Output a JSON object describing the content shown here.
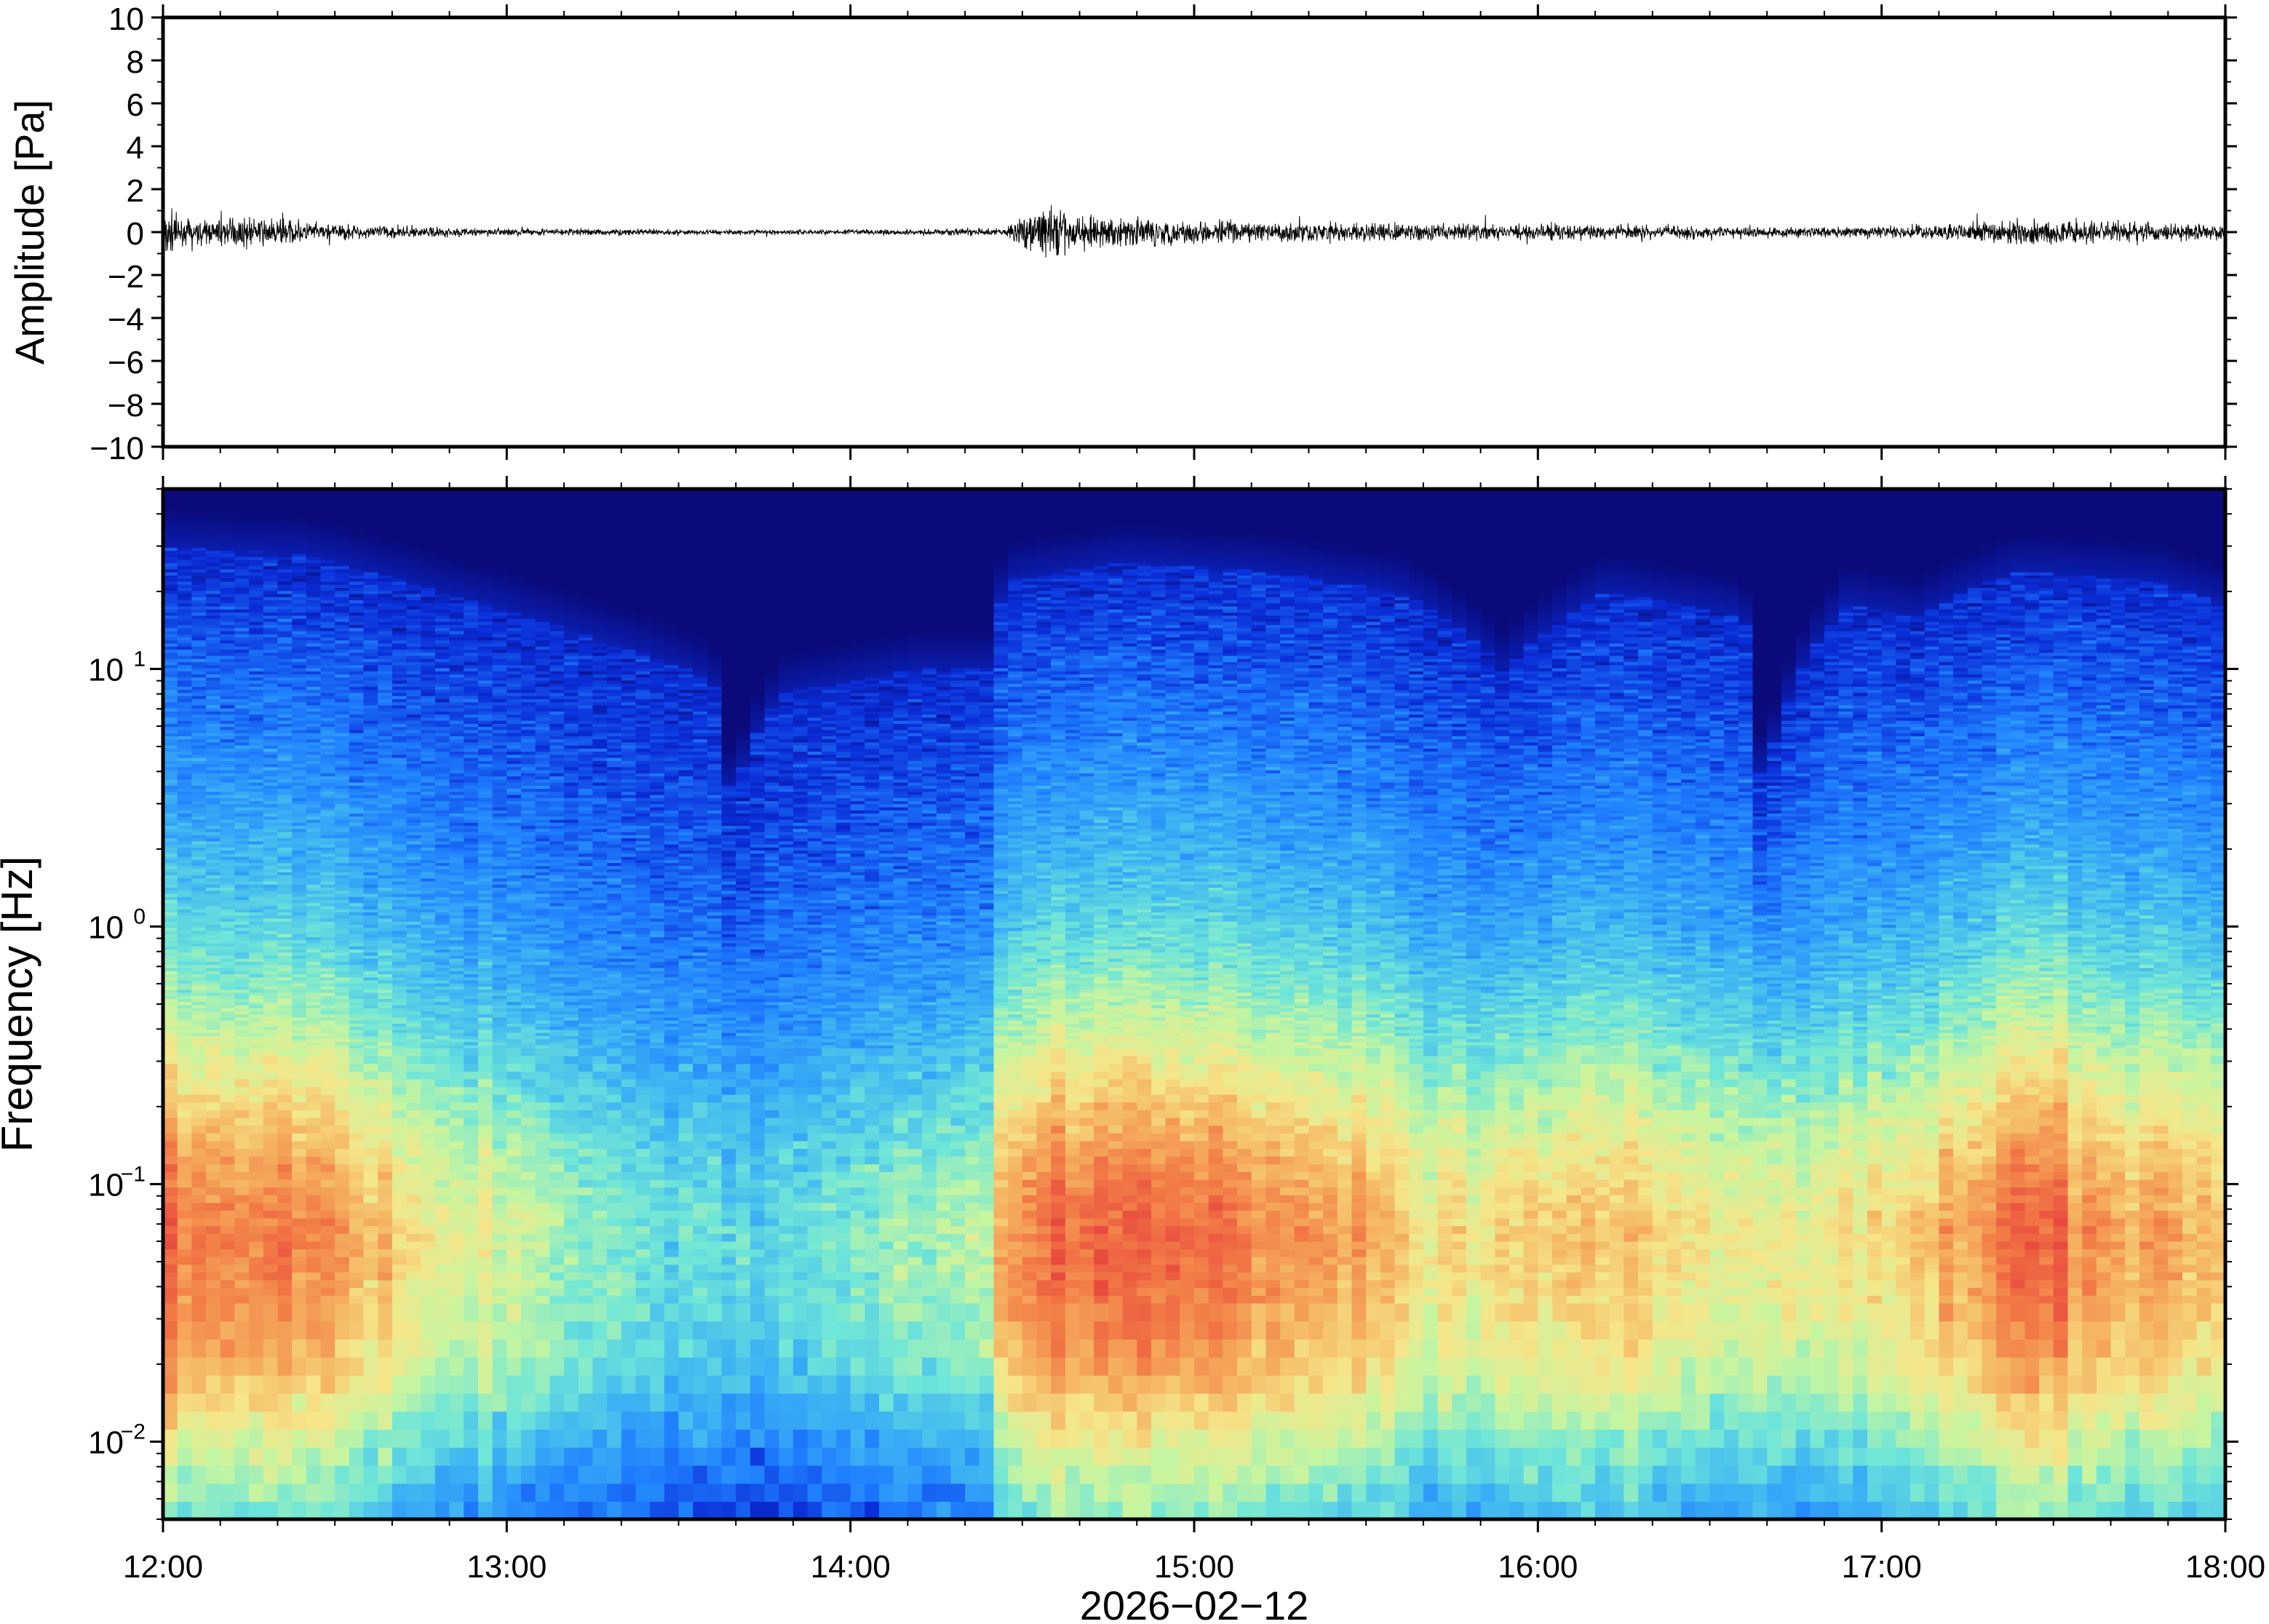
{
  "chart_data": [
    {
      "type": "line",
      "panel": "waveform",
      "title": "",
      "xlabel": "",
      "ylabel": "Amplitude [Pa]",
      "ylim": [
        -10,
        10
      ],
      "y_ticks": [
        -10,
        -8,
        -6,
        -4,
        -2,
        0,
        2,
        4,
        6,
        8,
        10
      ],
      "y_tick_labels": [
        "−10",
        "−8",
        "−6",
        "−4",
        "−2",
        "0",
        "2",
        "4",
        "6",
        "8",
        "10"
      ],
      "x_range": [
        "12:00",
        "18:00"
      ],
      "trace_color": "#000000",
      "envelope": {
        "time_hours": [
          12.0,
          12.05,
          12.3,
          12.5,
          12.9,
          13.3,
          13.7,
          14.1,
          14.45,
          14.5,
          14.55,
          14.7,
          15.0,
          15.4,
          16.0,
          16.4,
          16.8,
          17.1,
          17.4,
          17.6,
          18.0
        ],
        "amplitude_pa": [
          1.2,
          0.45,
          0.5,
          0.3,
          0.15,
          0.12,
          0.1,
          0.1,
          0.15,
          0.6,
          1.0,
          0.6,
          0.45,
          0.35,
          0.3,
          0.25,
          0.2,
          0.25,
          0.45,
          0.45,
          0.3
        ]
      }
    },
    {
      "type": "heatmap",
      "panel": "spectrogram",
      "title": "",
      "xlabel": "2026−02−12",
      "ylabel": "Frequency [Hz]",
      "y_scale": "log",
      "ylim": [
        0.005,
        50
      ],
      "y_ticks": [
        0.01,
        0.1,
        1,
        10
      ],
      "y_tick_labels": [
        {
          "base": "10",
          "exp": "−2"
        },
        {
          "base": "10",
          "exp": "−1"
        },
        {
          "base": "10",
          "exp": "0"
        },
        {
          "base": "10",
          "exp": "1"
        }
      ],
      "x_ticks": [
        "12:00",
        "13:00",
        "14:00",
        "15:00",
        "16:00",
        "17:00",
        "18:00"
      ],
      "x_range": [
        "12:00",
        "18:00"
      ],
      "colormap": [
        "#0a0a7a",
        "#0a2dd8",
        "#1f7fff",
        "#3fb6f2",
        "#6fe6d8",
        "#c6f5a0",
        "#f5e68a",
        "#f5b260",
        "#f27a46",
        "#e84a3e"
      ],
      "upper_noise_edge": {
        "time_hours": [
          12.0,
          12.4,
          12.8,
          13.2,
          13.6,
          13.65,
          13.8,
          14.2,
          14.4,
          14.45,
          14.8,
          15.2,
          15.6,
          15.9,
          16.2,
          16.6,
          16.65,
          16.9,
          17.1,
          17.4,
          17.8,
          18.0
        ],
        "frequency_hz": [
          30,
          28,
          20,
          14,
          9,
          3,
          8,
          10,
          10,
          22,
          26,
          24,
          20,
          10,
          20,
          16,
          3,
          18,
          16,
          24,
          22,
          18
        ]
      },
      "peak_energy_band_hz": [
        0.03,
        0.15
      ],
      "intensity_by_time": {
        "time_hours": [
          12.0,
          12.5,
          12.8,
          13.3,
          13.7,
          14.1,
          14.4,
          14.45,
          14.8,
          15.3,
          15.8,
          16.2,
          16.6,
          17.0,
          17.4,
          17.6,
          18.0
        ],
        "relative": [
          0.95,
          0.85,
          0.6,
          0.45,
          0.35,
          0.45,
          0.55,
          0.9,
          1.0,
          0.85,
          0.65,
          0.75,
          0.6,
          0.65,
          0.95,
          0.9,
          0.7
        ]
      }
    }
  ]
}
